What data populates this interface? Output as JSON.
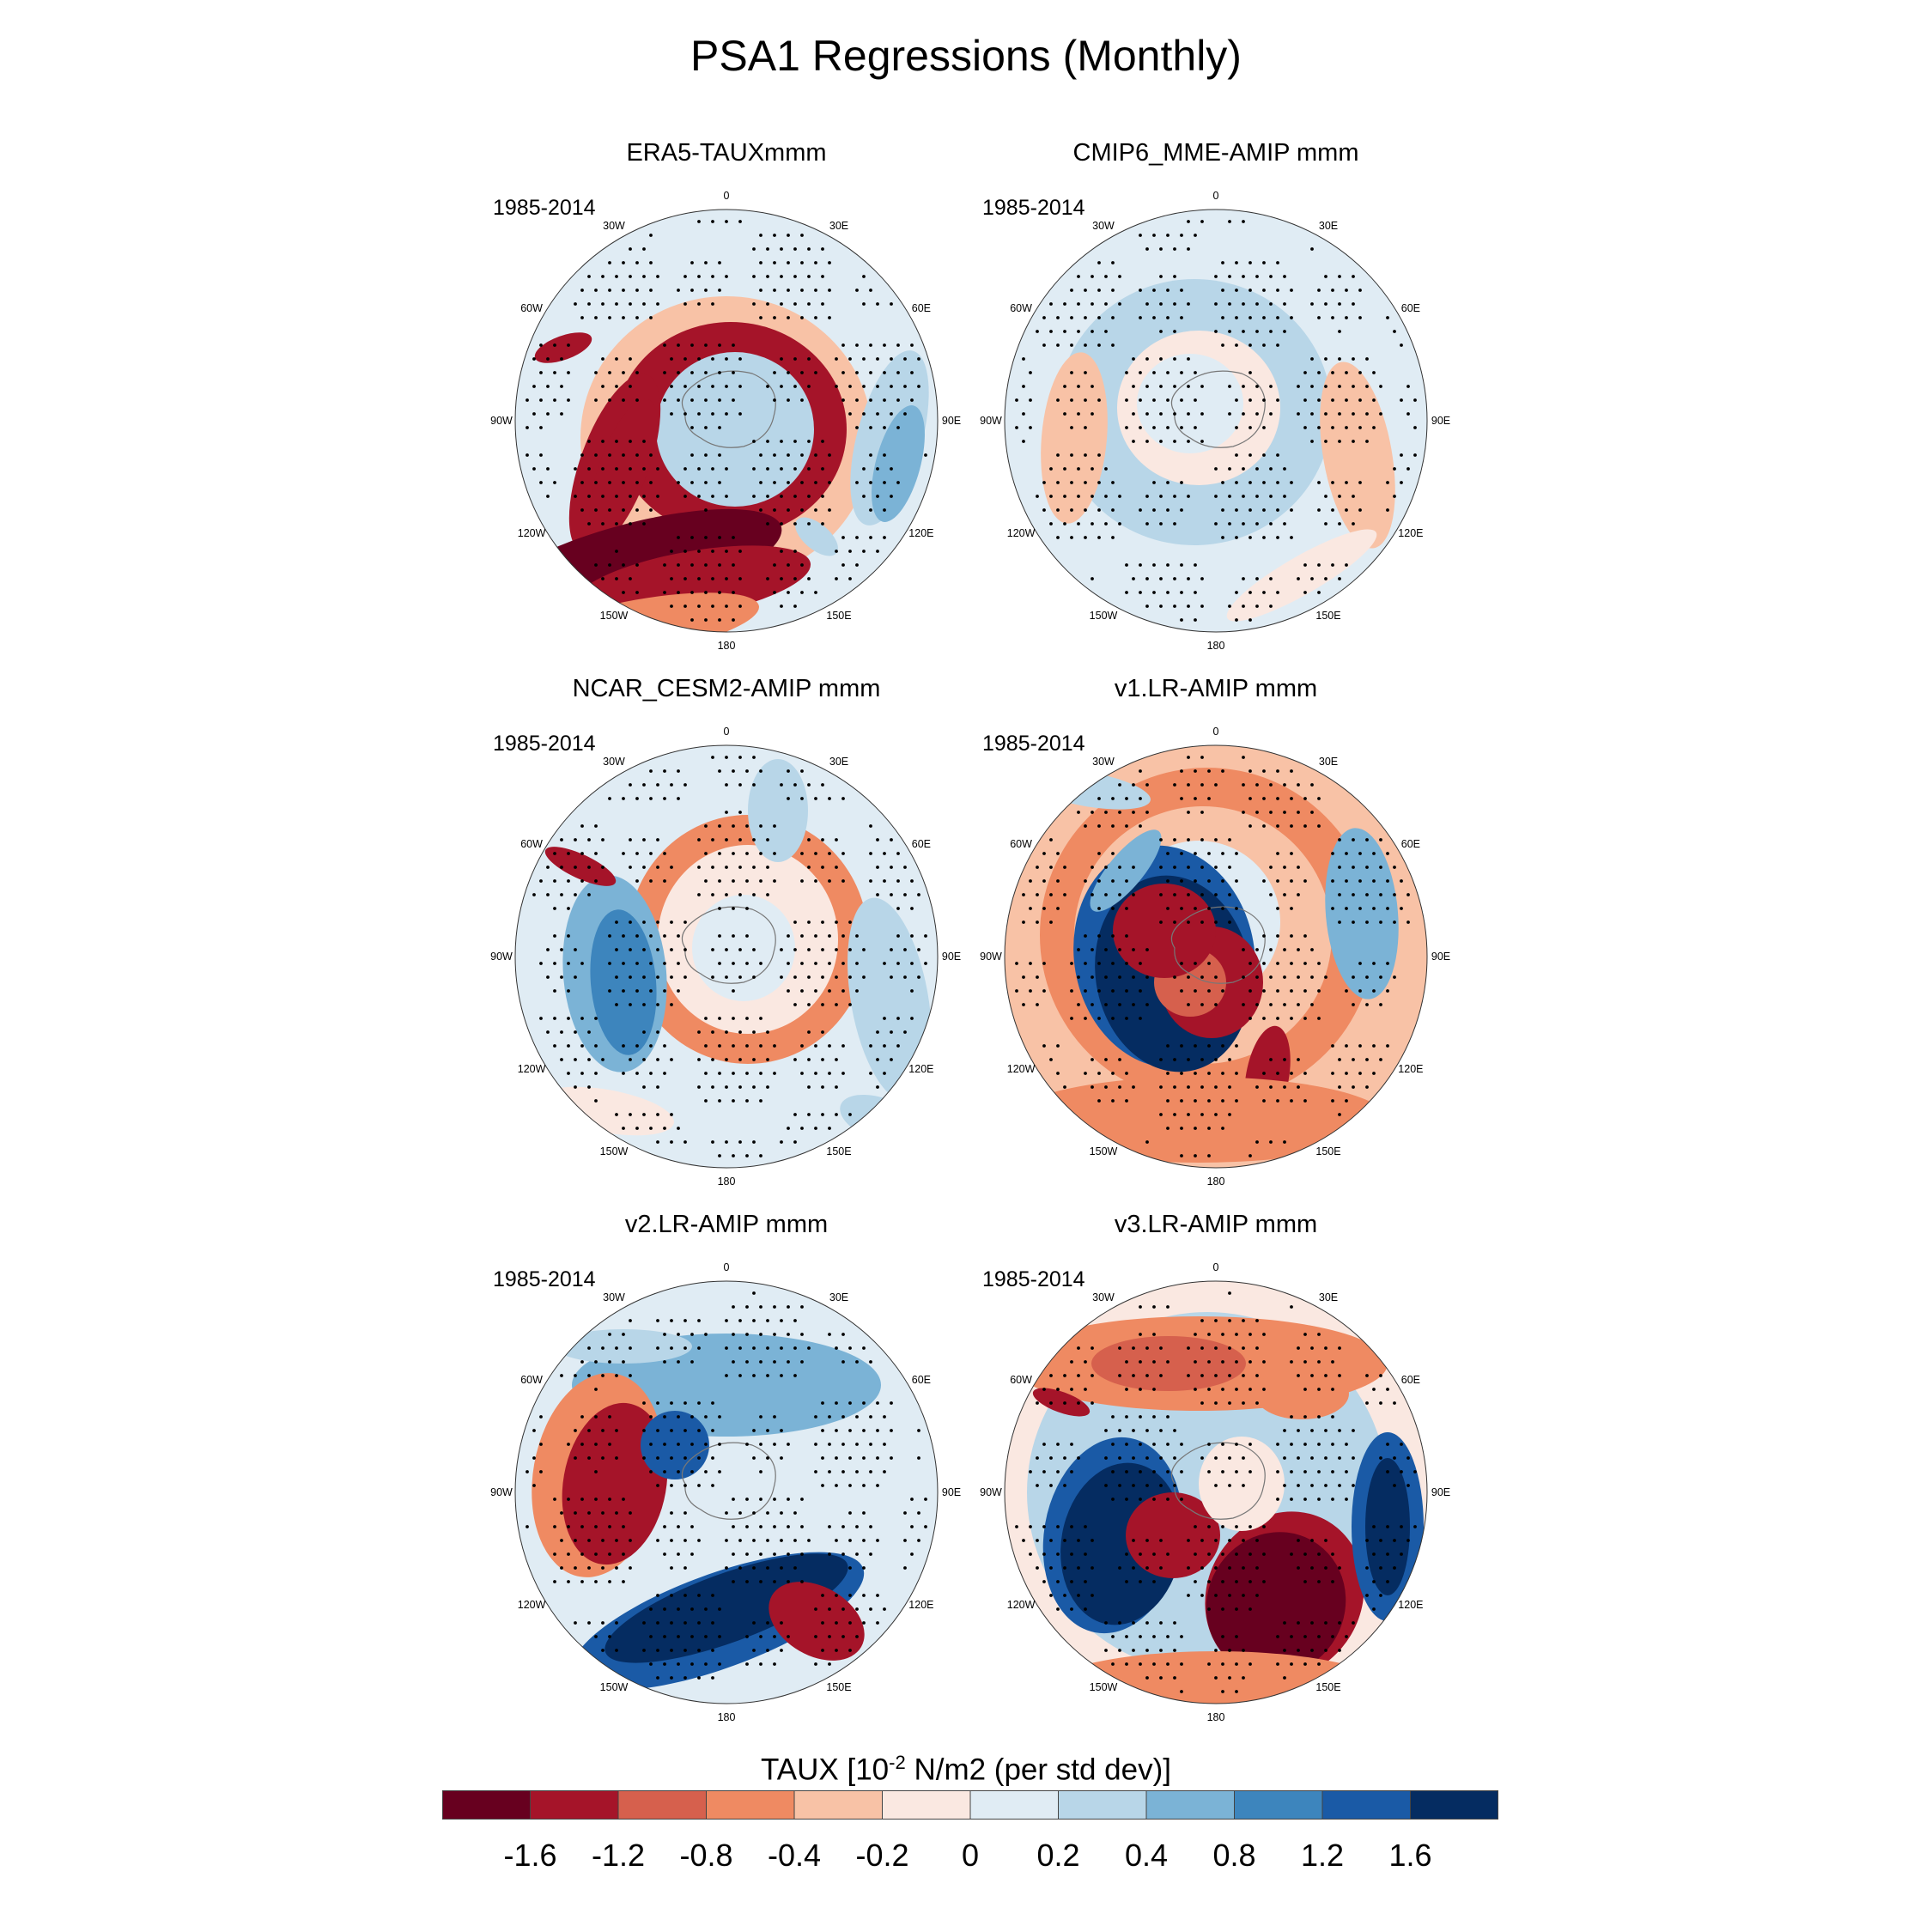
{
  "title": "PSA1 Regressions (Monthly)",
  "period": "1985-2014",
  "lon_labels": [
    "0",
    "30E",
    "60E",
    "90E",
    "120E",
    "150E",
    "180",
    "150W",
    "120W",
    "90W",
    "60W",
    "30W"
  ],
  "colorbar": {
    "title_prefix": "TAUX [10",
    "title_exp": "-2",
    "title_suffix": " N/m2 (per std dev)]",
    "colors": [
      "#67001f",
      "#a51429",
      "#d6604d",
      "#ef8a62",
      "#f8c2a6",
      "#fae8e1",
      "#e0ecf4",
      "#b8d6e8",
      "#7bb3d6",
      "#3d85bd",
      "#1a5aa6",
      "#052c61"
    ],
    "ticks": [
      "-1.6",
      "-1.2",
      "-0.8",
      "-0.4",
      "-0.2",
      "0",
      "0.2",
      "0.4",
      "0.8",
      "1.2",
      "1.6"
    ]
  },
  "chart_data": {
    "type": "heatmap",
    "projection": "south-polar-stereographic",
    "variable": "TAUX",
    "units": "10^-2 N/m2 (per std dev)",
    "levels": [
      -1.6,
      -1.2,
      -0.8,
      -0.4,
      -0.2,
      0,
      0.2,
      0.4,
      0.8,
      1.2,
      1.6
    ],
    "panels": [
      {
        "title": "ERA5-TAUXmmm",
        "period": "1985-2014"
      },
      {
        "title": "CMIP6_MME-AMIP  mmm",
        "period": "1985-2014"
      },
      {
        "title": "NCAR_CESM2-AMIP  mmm",
        "period": "1985-2014"
      },
      {
        "title": "v1.LR-AMIP  mmm",
        "period": "1985-2014"
      },
      {
        "title": "v2.LR-AMIP  mmm",
        "period": "1985-2014"
      },
      {
        "title": "v3.LR-AMIP  mmm",
        "period": "1985-2014"
      }
    ]
  }
}
